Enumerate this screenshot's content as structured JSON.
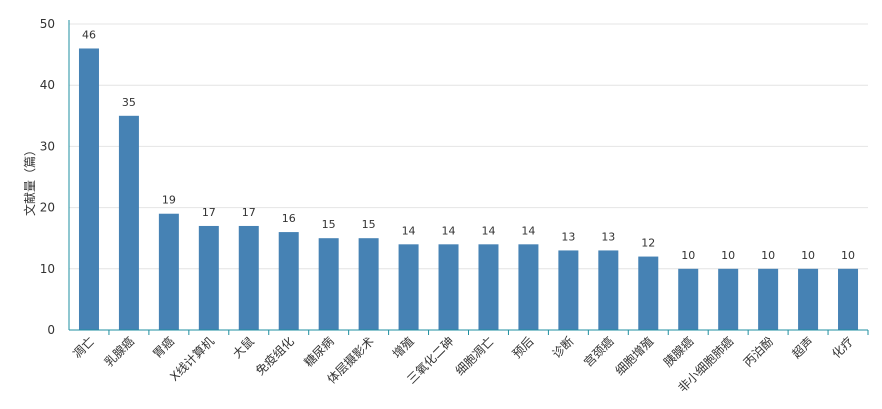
{
  "chart_data": {
    "type": "bar",
    "ylabel": "文献量（篇）",
    "xlabel": "",
    "title": "",
    "ylim": [
      0,
      50
    ],
    "yticks": [
      0,
      10,
      20,
      30,
      40,
      50
    ],
    "grid": true,
    "bar_color": "#4682B4",
    "axis_color": "#1F8FA0",
    "categories": [
      "凋亡",
      "乳腺癌",
      "胃癌",
      "X线计算机",
      "大鼠",
      "免疫组化",
      "糖尿病",
      "体层摄影术",
      "增殖",
      "三氧化二砷",
      "细胞凋亡",
      "预后",
      "诊断",
      "宫颈癌",
      "细胞增殖",
      "胰腺癌",
      "非小细胞肺癌",
      "丙泊酚",
      "超声",
      "化疗"
    ],
    "values": [
      46,
      35,
      19,
      17,
      17,
      16,
      15,
      15,
      14,
      14,
      14,
      14,
      13,
      13,
      12,
      10,
      10,
      10,
      10,
      10
    ]
  }
}
